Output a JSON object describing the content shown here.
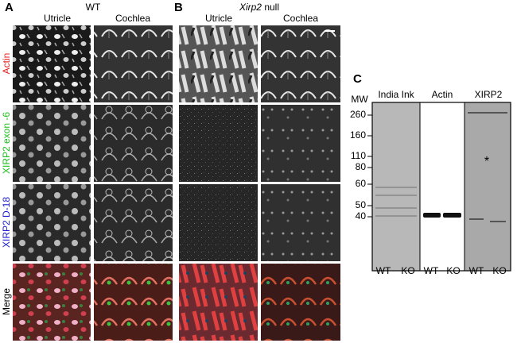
{
  "panel_a": {
    "label": "A",
    "title": "WT",
    "columns": [
      "Utricle",
      "Cochlea"
    ]
  },
  "panel_b": {
    "label": "B",
    "title_gene": "Xirp2",
    "title_rest": "null",
    "columns": [
      "Utricle",
      "Cochlea"
    ]
  },
  "rows": [
    "Actin",
    "XIRP2 exon -6",
    "XIRP2 D-18",
    "Merge"
  ],
  "panel_c": {
    "label": "C",
    "mw_label": "MW",
    "markers": [
      "260",
      "160",
      "110",
      "80",
      "60",
      "50",
      "40"
    ],
    "lanes": [
      "India Ink",
      "Actin",
      "XIRP2"
    ],
    "samples": [
      "WT",
      "KO",
      "WT",
      "KO",
      "WT",
      "KO"
    ],
    "asterisk": "*"
  }
}
